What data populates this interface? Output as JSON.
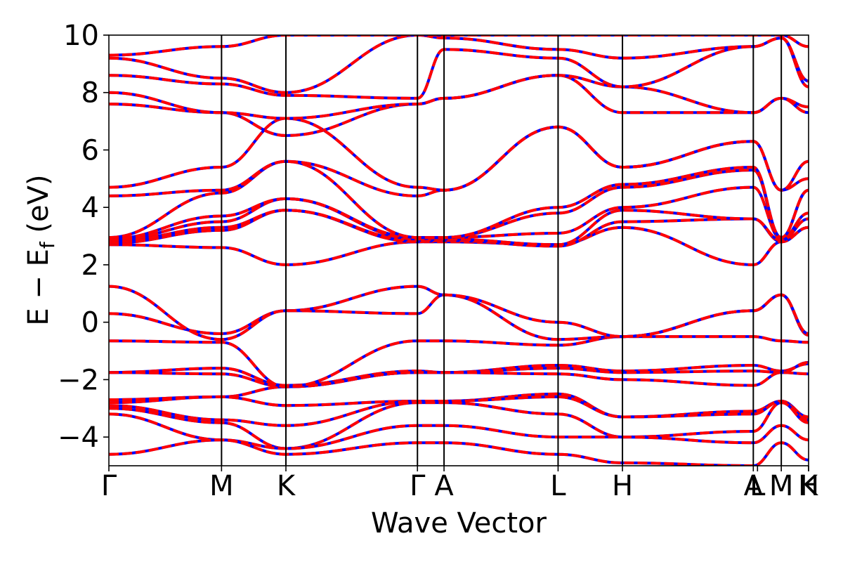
{
  "chart_data": {
    "type": "line",
    "xlabel": "Wave Vector",
    "ylabel": "E − E",
    "ylabel_sub": "f",
    "ylabel_unit": " (eV)",
    "ylim": [
      -5,
      10
    ],
    "grid": false,
    "yticks": [
      "−4",
      "−2",
      "0",
      "2",
      "4",
      "6",
      "8",
      "10"
    ],
    "ytick_values": [
      -4,
      -2,
      0,
      2,
      4,
      6,
      8,
      10
    ],
    "kpoints": [
      {
        "label": "Γ",
        "x": 0.0
      },
      {
        "label": "M",
        "x": 0.161
      },
      {
        "label": "K",
        "x": 0.253
      },
      {
        "label": "Γ",
        "x": 0.441
      },
      {
        "label": "A",
        "x": 0.479
      },
      {
        "label": "L",
        "x": 0.642
      },
      {
        "label": "H",
        "x": 0.734
      },
      {
        "label": "A",
        "x": 0.921
      },
      {
        "label": "L",
        "x": 0.927
      },
      {
        "label": "M",
        "x": 0.961
      },
      {
        "label": "K",
        "x": 1.0
      },
      {
        "label": "H",
        "x": 1.0
      }
    ],
    "segment_ends": [
      0.161,
      0.253,
      0.441,
      0.479,
      0.642,
      0.734,
      0.921,
      0.961,
      1.0
    ],
    "styles": {
      "reference_color": "#0000ff",
      "overlay_color": "#ff0000"
    },
    "series": [
      {
        "values": [
          -1.75,
          -1.6,
          -2.2,
          -1.7,
          -1.75,
          -1.5,
          -1.7,
          -1.5,
          -1.7,
          -1.45,
          -1.6
        ]
      },
      {
        "values": [
          -1.75,
          -1.8,
          -2.25,
          -1.75,
          -1.75,
          -1.6,
          -1.75,
          -1.7,
          -1.75,
          -1.4,
          -2.2
        ]
      },
      {
        "values": [
          -2.7,
          -2.6,
          -2.25,
          -1.75,
          -1.75,
          -1.8,
          -2.0,
          -2.2,
          -1.75,
          -1.8,
          -2.2
        ]
      },
      {
        "values": [
          -2.8,
          -2.6,
          -2.9,
          -2.75,
          -2.75,
          -2.5,
          -3.3,
          -3.1,
          -2.75,
          -3.3,
          -2.8
        ]
      },
      {
        "values": [
          -2.9,
          -3.4,
          -3.6,
          -2.75,
          -2.75,
          -2.6,
          -3.3,
          -3.2,
          -2.75,
          -3.4,
          -3.2
        ]
      },
      {
        "values": [
          -3.0,
          -3.5,
          -4.4,
          -2.8,
          -2.8,
          -3.2,
          -4.0,
          -3.8,
          -2.8,
          -3.5,
          -3.7
        ]
      },
      {
        "values": [
          -3.2,
          -4.1,
          -4.4,
          -3.6,
          -3.6,
          -4.0,
          -4.0,
          -4.2,
          -3.6,
          -4.1,
          -4.4
        ]
      },
      {
        "values": [
          -4.6,
          -4.1,
          -4.6,
          -4.2,
          -4.2,
          -4.6,
          -4.9,
          -5.0,
          -4.2,
          -4.8,
          -4.9
        ]
      },
      {
        "values": [
          -0.65,
          -0.7,
          -2.25,
          -0.65,
          -0.65,
          -0.8,
          -0.5,
          -0.5,
          -0.65,
          -0.7,
          -0.6
        ]
      },
      {
        "values": [
          0.3,
          -0.4,
          0.4,
          0.3,
          0.95,
          -0.6,
          -0.5,
          0.4,
          0.95,
          -0.45,
          0.4
        ]
      },
      {
        "values": [
          1.25,
          -0.6,
          0.4,
          1.25,
          0.95,
          0.0,
          -0.5,
          0.4,
          0.95,
          -0.4,
          0.4
        ]
      },
      {
        "values": [
          2.7,
          2.6,
          2.0,
          2.8,
          2.8,
          2.7,
          3.3,
          2.0,
          2.8,
          3.3,
          2.0
        ]
      },
      {
        "values": [
          2.75,
          3.2,
          3.9,
          2.8,
          2.85,
          2.65,
          3.5,
          3.6,
          2.8,
          3.3,
          3.6
        ]
      },
      {
        "values": [
          2.8,
          3.3,
          3.9,
          2.85,
          2.9,
          2.7,
          3.9,
          3.6,
          2.85,
          3.6,
          3.6
        ]
      },
      {
        "values": [
          2.85,
          3.5,
          4.3,
          2.9,
          2.95,
          3.1,
          4.0,
          4.7,
          2.9,
          3.8,
          4.7
        ]
      },
      {
        "values": [
          2.9,
          3.7,
          4.3,
          2.95,
          2.95,
          3.8,
          4.7,
          5.3,
          2.95,
          4.6,
          4.7
        ]
      },
      {
        "values": [
          2.95,
          4.5,
          5.6,
          2.95,
          2.95,
          4.0,
          4.8,
          5.4,
          2.95,
          4.6,
          5.6
        ]
      },
      {
        "values": [
          4.4,
          4.6,
          5.6,
          4.4,
          4.6,
          6.8,
          5.4,
          6.3,
          4.6,
          5.0,
          6.3
        ]
      },
      {
        "values": [
          4.7,
          5.4,
          7.1,
          4.7,
          4.6,
          6.8,
          5.4,
          6.3,
          4.6,
          5.6,
          6.3
        ]
      },
      {
        "values": [
          7.6,
          7.3,
          6.5,
          7.6,
          7.8,
          8.6,
          7.3,
          7.3,
          7.8,
          7.3,
          7.3
        ]
      },
      {
        "values": [
          8.0,
          7.3,
          7.1,
          7.6,
          7.8,
          8.6,
          8.2,
          7.3,
          7.8,
          7.5,
          7.3
        ]
      },
      {
        "values": [
          8.6,
          8.3,
          7.9,
          7.8,
          9.5,
          9.2,
          8.2,
          9.6,
          9.9,
          8.2,
          9.6
        ]
      },
      {
        "values": [
          9.2,
          8.5,
          8.0,
          10.0,
          9.9,
          9.5,
          9.2,
          9.6,
          9.9,
          8.4,
          9.6
        ]
      },
      {
        "values": [
          9.3,
          9.6,
          10.0,
          10.0,
          10.0,
          10.0,
          10.0,
          10.0,
          10.0,
          9.6,
          10.0
        ]
      }
    ]
  }
}
